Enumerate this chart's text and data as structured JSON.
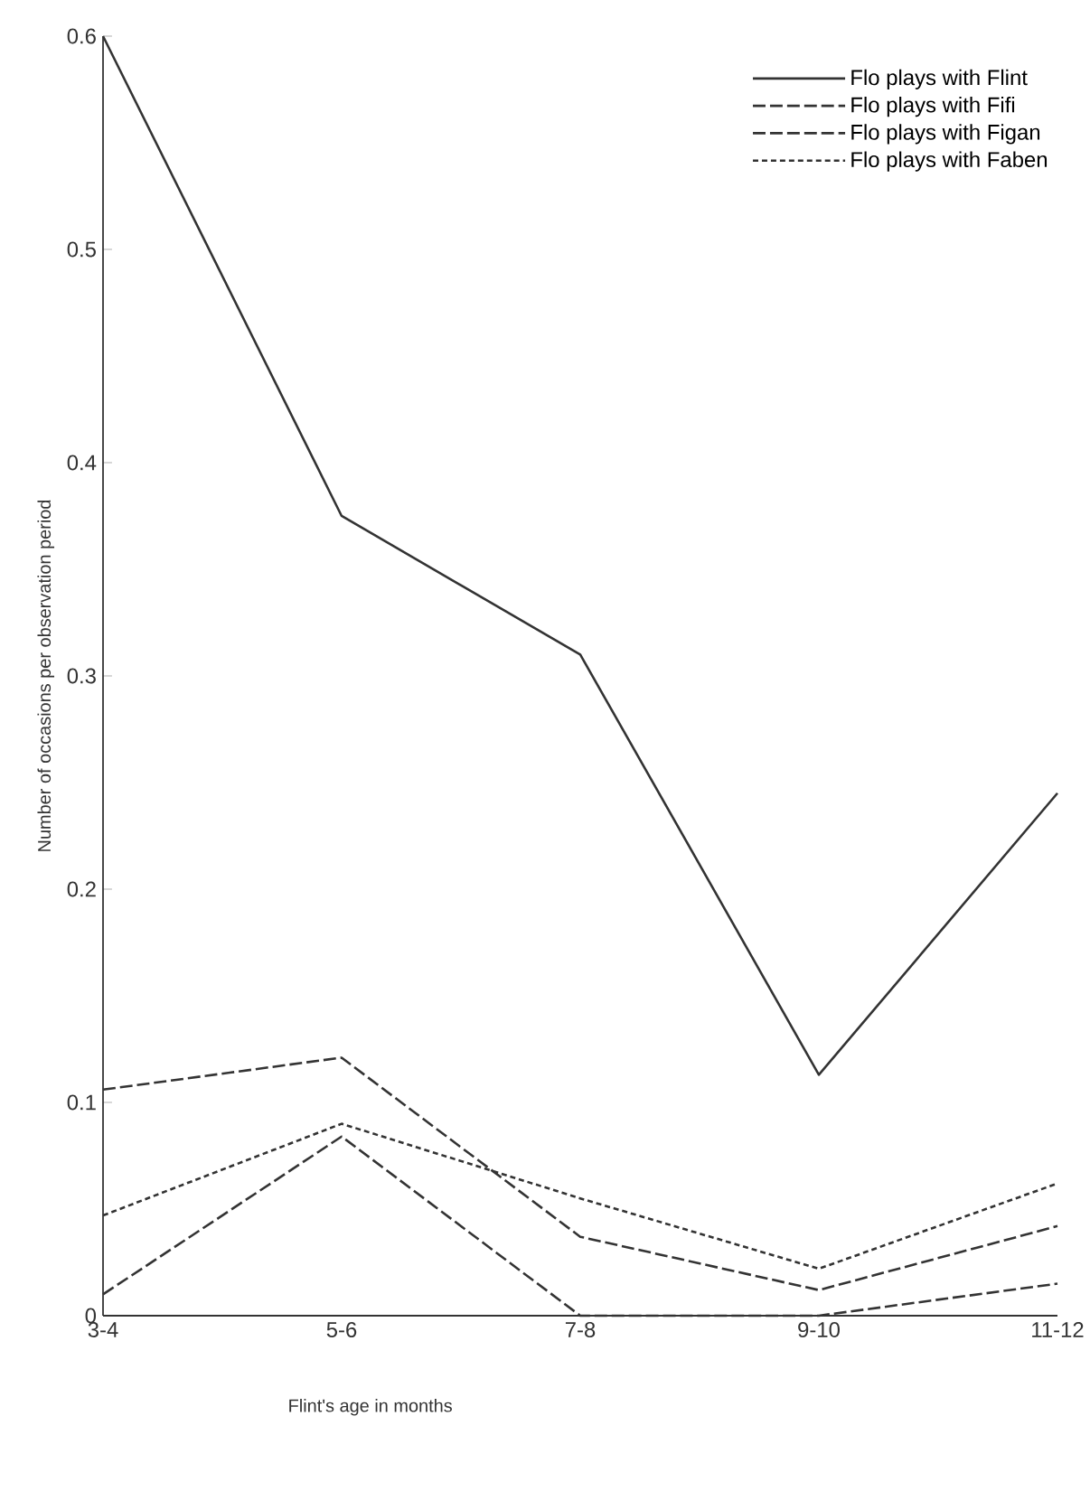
{
  "chart_data": {
    "type": "line",
    "xlabel": "Flint's age in months",
    "ylabel": "Number of occasions per observation period",
    "categories": [
      "3-4",
      "5-6",
      "7-8",
      "9-10",
      "11-12"
    ],
    "series": [
      {
        "name": "Flo plays with Flint",
        "color": "#333333",
        "line_style": "solid",
        "values": [
          0.6,
          0.375,
          0.31,
          0.113,
          0.245
        ]
      },
      {
        "name": "Flo plays with Fifi",
        "color": "#333333",
        "line_style": "dashed",
        "values": [
          0.106,
          0.121,
          0.037,
          0.012,
          0.042
        ]
      },
      {
        "name": "Flo plays with Figan",
        "color": "#333333",
        "line_style": "dashed",
        "values": [
          0.01,
          0.084,
          0,
          0,
          0.015
        ]
      },
      {
        "name": "Flo plays with Faben",
        "color": "#333333",
        "line_style": "dotted",
        "values": [
          0.047,
          0.09,
          0.055,
          0.022,
          0.062
        ]
      }
    ],
    "ylim": [
      0,
      0.6
    ],
    "yticks": [
      0,
      0.1,
      0.2,
      0.3,
      0.4,
      0.5,
      0.6
    ],
    "legend": "top right",
    "grid": false,
    "marker": "none"
  }
}
